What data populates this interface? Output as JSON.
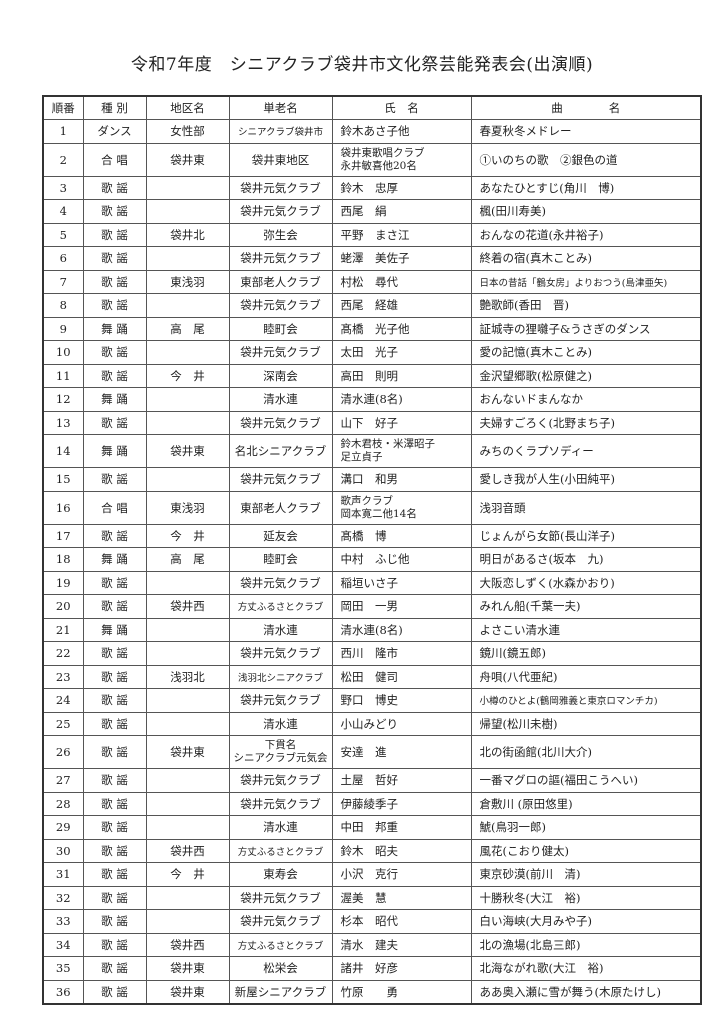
{
  "title": "令和7年度　シニアクラブ袋井市文化祭芸能発表会(出演順)",
  "headers": [
    "順番",
    "種 別",
    "地区名",
    "単老名",
    "氏　名",
    "曲　　　　名"
  ],
  "rows": [
    {
      "no": "1",
      "type": "ダンス",
      "district": "女性部",
      "club": "シニアクラブ袋井市",
      "name": "鈴木あさ子他",
      "song": "春夏秋冬メドレー"
    },
    {
      "no": "2",
      "type": "合 唱",
      "district": "袋井東",
      "club": "袋井東地区",
      "name": "袋井東歌唱クラブ",
      "name2": "永井敏喜他20名",
      "song": "①いのちの歌　②銀色の道"
    },
    {
      "no": "3",
      "type": "歌 謡",
      "district": "",
      "club": "袋井元気クラブ",
      "name": "鈴木　忠厚",
      "song": "あなたひとすじ(角川　博)"
    },
    {
      "no": "4",
      "type": "歌 謡",
      "district": "",
      "club": "袋井元気クラブ",
      "name": "西尾　絹",
      "song": "楓(田川寿美)"
    },
    {
      "no": "5",
      "type": "歌 謡",
      "district": "袋井北",
      "club": "弥生会",
      "name": "平野　まさ江",
      "song": "おんなの花道(永井裕子)"
    },
    {
      "no": "6",
      "type": "歌 謡",
      "district": "",
      "club": "袋井元気クラブ",
      "name": "蛯澤　美佐子",
      "song": "終着の宿(真木ことみ)"
    },
    {
      "no": "7",
      "type": "歌 謡",
      "district": "東浅羽",
      "club": "東部老人クラブ",
      "name": "村松　尋代",
      "song": "日本の昔話「鶴女房」よりおつう(島津亜矢)"
    },
    {
      "no": "8",
      "type": "歌 謡",
      "district": "",
      "club": "袋井元気クラブ",
      "name": "西尾　経雄",
      "song": "艶歌師(香田　晋)"
    },
    {
      "no": "9",
      "type": "舞 踊",
      "district": "高　尾",
      "club": "睦町会",
      "name": "髙橋　光子他",
      "song": "証城寺の狸囃子&うさぎのダンス"
    },
    {
      "no": "10",
      "type": "歌 謡",
      "district": "",
      "club": "袋井元気クラブ",
      "name": "太田　光子",
      "song": "愛の記憶(真木ことみ)"
    },
    {
      "no": "11",
      "type": "歌 謡",
      "district": "今　井",
      "club": "深南会",
      "name": "高田　則明",
      "song": "金沢望郷歌(松原健之)"
    },
    {
      "no": "12",
      "type": "舞 踊",
      "district": "",
      "club": "清水連",
      "name": "清水連(8名)",
      "song": "おんないドまんなか"
    },
    {
      "no": "13",
      "type": "歌 謡",
      "district": "",
      "club": "袋井元気クラブ",
      "name": "山下　好子",
      "song": "夫婦すごろく(北野まち子)"
    },
    {
      "no": "14",
      "type": "舞 踊",
      "district": "袋井東",
      "club": "名北シニアクラブ",
      "name": "鈴木君枝・米澤昭子",
      "name2": "足立貞子",
      "song": "みちのくラプソディー"
    },
    {
      "no": "15",
      "type": "歌 謡",
      "district": "",
      "club": "袋井元気クラブ",
      "name": "溝口　和男",
      "song": "愛しき我が人生(小田純平)"
    },
    {
      "no": "16",
      "type": "合 唱",
      "district": "東浅羽",
      "club": "東部老人クラブ",
      "name": "歌声クラブ",
      "name2": "岡本寛二他14名",
      "song": "浅羽音頭"
    },
    {
      "no": "17",
      "type": "歌 謡",
      "district": "今　井",
      "club": "延友会",
      "name": "髙橋　博",
      "song": "じょんがら女節(長山洋子)"
    },
    {
      "no": "18",
      "type": "舞 踊",
      "district": "高　尾",
      "club": "睦町会",
      "name": "中村　ふじ他",
      "song": "明日があるさ(坂本　九)"
    },
    {
      "no": "19",
      "type": "歌 謡",
      "district": "",
      "club": "袋井元気クラブ",
      "name": "稲垣いさ子",
      "song": "大阪恋しずく(水森かおり)"
    },
    {
      "no": "20",
      "type": "歌 謡",
      "district": "袋井西",
      "club": "方丈ふるさとクラブ",
      "name": "岡田　一男",
      "song": "みれん船(千葉一夫)"
    },
    {
      "no": "21",
      "type": "舞 踊",
      "district": "",
      "club": "清水連",
      "name": "清水連(8名)",
      "song": "よさこい清水連"
    },
    {
      "no": "22",
      "type": "歌 謡",
      "district": "",
      "club": "袋井元気クラブ",
      "name": "西川　隆市",
      "song": "鏡川(鏡五郎)"
    },
    {
      "no": "23",
      "type": "歌 謡",
      "district": "浅羽北",
      "club": "浅羽北シニアクラブ",
      "name": "松田　健司",
      "song": "舟唄(八代亜紀)"
    },
    {
      "no": "24",
      "type": "歌 謡",
      "district": "",
      "club": "袋井元気クラブ",
      "name": "野口　博史",
      "song": "小樽のひとよ(鶴岡雅義と東京ロマンチカ)"
    },
    {
      "no": "25",
      "type": "歌 謡",
      "district": "",
      "club": "清水連",
      "name": "小山みどり",
      "song": "帰望(松川未樹)"
    },
    {
      "no": "26",
      "type": "歌 謡",
      "district": "袋井東",
      "club": "下貫名",
      "club2": "シニアクラブ元気会",
      "name": "安達　進",
      "song": "北の街函館(北川大介)"
    },
    {
      "no": "27",
      "type": "歌 謡",
      "district": "",
      "club": "袋井元気クラブ",
      "name": "土屋　哲好",
      "song": "一番マグロの謳(福田こうへい)"
    },
    {
      "no": "28",
      "type": "歌 謡",
      "district": "",
      "club": "袋井元気クラブ",
      "name": "伊藤綾季子",
      "song": "倉敷川 (原田悠里)"
    },
    {
      "no": "29",
      "type": "歌 謡",
      "district": "",
      "club": "清水連",
      "name": "中田　邦重",
      "song": "鯱(鳥羽一郎)"
    },
    {
      "no": "30",
      "type": "歌 謡",
      "district": "袋井西",
      "club": "方丈ふるさとクラブ",
      "name": "鈴木　昭夫",
      "song": "風花(こおり健太)"
    },
    {
      "no": "31",
      "type": "歌 謡",
      "district": "今　井",
      "club": "東寿会",
      "name": "小沢　克行",
      "song": "東京砂漠(前川　清)"
    },
    {
      "no": "32",
      "type": "歌 謡",
      "district": "",
      "club": "袋井元気クラブ",
      "name": "渥美　慧",
      "song": "十勝秋冬(大江　裕)"
    },
    {
      "no": "33",
      "type": "歌 謡",
      "district": "",
      "club": "袋井元気クラブ",
      "name": "杉本　昭代",
      "song": "白い海峡(大月みや子)"
    },
    {
      "no": "34",
      "type": "歌 謡",
      "district": "袋井西",
      "club": "方丈ふるさとクラブ",
      "name": "清水　建夫",
      "song": "北の漁場(北島三郎)"
    },
    {
      "no": "35",
      "type": "歌 謡",
      "district": "袋井東",
      "club": "松栄会",
      "name": "諸井　好彦",
      "song": "北海ながれ歌(大江　裕)"
    },
    {
      "no": "36",
      "type": "歌 謡",
      "district": "袋井東",
      "club": "新屋シニアクラブ",
      "name": "竹原　　勇",
      "song": "ああ奥入瀬に雪が舞う(木原たけし)"
    }
  ]
}
